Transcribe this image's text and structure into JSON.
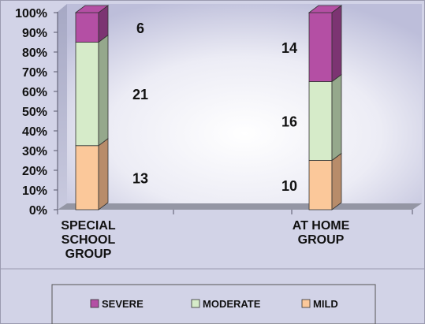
{
  "chart_data": {
    "type": "bar",
    "stacked": true,
    "percent_stacked": true,
    "three_d": true,
    "categories": [
      "SPECIAL SCHOOL GROUP",
      "AT HOME GROUP"
    ],
    "category_lines": [
      [
        "SPECIAL",
        "SCHOOL",
        "GROUP"
      ],
      [
        "AT HOME",
        "GROUP"
      ]
    ],
    "series": [
      {
        "name": "MILD",
        "values": [
          13,
          10
        ],
        "color": "#FBC89A",
        "side": "#B88C6A"
      },
      {
        "name": "MODERATE",
        "values": [
          21,
          16
        ],
        "color": "#D6EBC9",
        "side": "#95A88C"
      },
      {
        "name": "SEVERE",
        "values": [
          6,
          14
        ],
        "color": "#B44FA4",
        "side": "#7C3472"
      }
    ],
    "legend": [
      "SEVERE",
      "MODERATE",
      "MILD"
    ],
    "legend_placement": "bottom",
    "y_ticks": [
      "0%",
      "10%",
      "20%",
      "30%",
      "40%",
      "50%",
      "60%",
      "70%",
      "80%",
      "90%",
      "100%"
    ],
    "ylim": [
      0,
      100
    ],
    "grid": false,
    "title": "",
    "xlabel": "",
    "ylabel": "",
    "colors": {
      "background": "#D2D3E7",
      "plot_top": "#BDBEDA",
      "plot_center": "#FFFFFF",
      "floor": "#9496A4"
    }
  }
}
